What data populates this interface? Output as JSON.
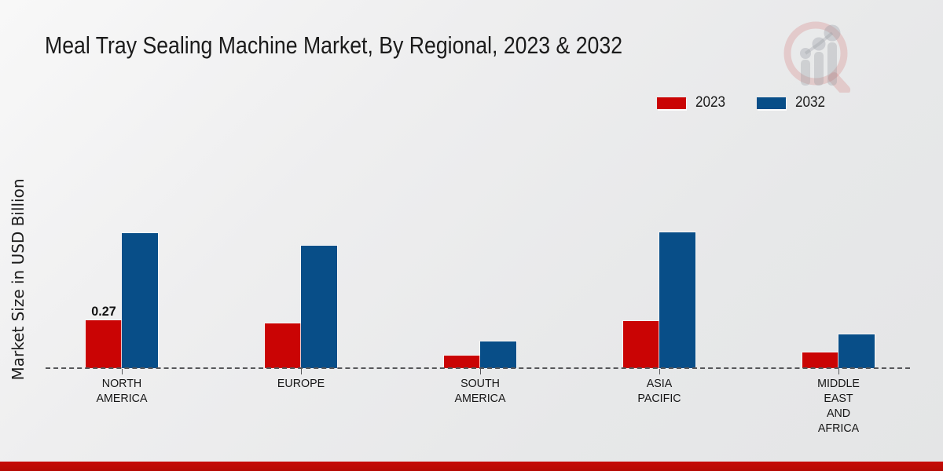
{
  "page": {
    "title": "Meal Tray Sealing Machine Market, By Regional, 2023 & 2032",
    "y_axis_label": "Market Size in USD Billion",
    "watermark_icon": "market-research-magnifier-bar-chart-logo"
  },
  "colors": {
    "red_2023": "#ca0404",
    "blue_2032": "#084e88",
    "banner_red": "#bf0a05",
    "baseline_gray": "#56575a",
    "title_text": "#1b1b1b"
  },
  "chart_data": {
    "type": "bar",
    "title": "Meal Tray Sealing Machine Market, By Regional, 2023 & 2032",
    "xlabel": "",
    "ylabel": "Market Size in USD Billion",
    "categories": [
      "NORTH AMERICA",
      "EUROPE",
      "SOUTH AMERICA",
      "ASIA PACIFIC",
      "MIDDLE EAST AND AFRICA"
    ],
    "series": [
      {
        "name": "2023",
        "color_key": "red_2023",
        "values": [
          0.27,
          0.25,
          0.07,
          0.265,
          0.09
        ],
        "labels": [
          "0.27",
          "",
          "",
          "",
          ""
        ]
      },
      {
        "name": "2032",
        "color_key": "blue_2032",
        "values": [
          0.76,
          0.69,
          0.15,
          0.765,
          0.19
        ],
        "labels": [
          "",
          "",
          "",
          "",
          ""
        ]
      }
    ],
    "ylim": [
      0,
      0.9
    ],
    "grid": false,
    "legend_position": "top-right",
    "baseline_style": "dashed",
    "annotations": [
      {
        "series": "2023",
        "category": "NORTH AMERICA",
        "text": "0.27"
      }
    ]
  }
}
